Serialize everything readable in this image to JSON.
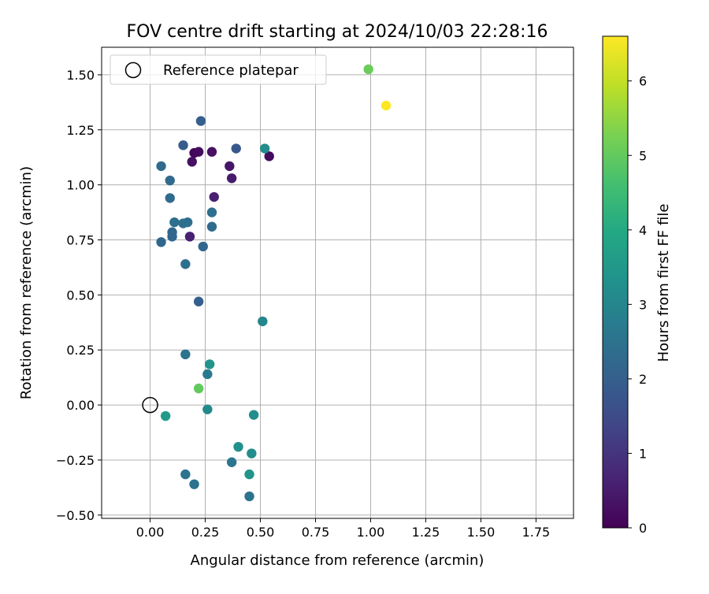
{
  "chart_data": {
    "type": "scatter",
    "title": "FOV centre drift starting at 2024/10/03 22:28:16",
    "xlabel": "Angular distance from reference (arcmin)",
    "ylabel": "Rotation from reference (arcmin)",
    "xlim": [
      -0.22,
      1.92
    ],
    "ylim": [
      -0.515,
      1.625
    ],
    "xticks": [
      0.0,
      0.25,
      0.5,
      0.75,
      1.0,
      1.25,
      1.5,
      1.75
    ],
    "xtick_labels": [
      "0.00",
      "0.25",
      "0.50",
      "0.75",
      "1.00",
      "1.25",
      "1.50",
      "1.75"
    ],
    "yticks": [
      -0.5,
      -0.25,
      0.0,
      0.25,
      0.5,
      0.75,
      1.0,
      1.25,
      1.5
    ],
    "ytick_labels": [
      "−0.50",
      "−0.25",
      "0.00",
      "0.25",
      "0.50",
      "0.75",
      "1.00",
      "1.25",
      "1.50"
    ],
    "grid": true,
    "legend": {
      "position": "top-left",
      "entries": [
        "Reference platepar"
      ]
    },
    "reference_point": {
      "x": 0.0,
      "y": 0.0
    },
    "colorbar": {
      "label": "Hours from first FF file",
      "min": 0,
      "max": 6.6,
      "ticks": [
        0,
        1,
        2,
        3,
        4,
        5,
        6
      ],
      "tick_labels": [
        "0",
        "1",
        "2",
        "3",
        "4",
        "5",
        "6"
      ],
      "colormap": "viridis"
    },
    "points": [
      {
        "x": 0.2,
        "y": 1.145,
        "hours": 0.1
      },
      {
        "x": 0.22,
        "y": 1.15,
        "hours": 0.2
      },
      {
        "x": 0.28,
        "y": 1.15,
        "hours": 0.3
      },
      {
        "x": 0.19,
        "y": 1.105,
        "hours": 0.3
      },
      {
        "x": 0.36,
        "y": 1.085,
        "hours": 0.4
      },
      {
        "x": 0.54,
        "y": 1.13,
        "hours": 0.2
      },
      {
        "x": 0.37,
        "y": 1.03,
        "hours": 0.5
      },
      {
        "x": 0.29,
        "y": 0.945,
        "hours": 0.6
      },
      {
        "x": 0.18,
        "y": 0.765,
        "hours": 0.6
      },
      {
        "x": 0.23,
        "y": 1.29,
        "hours": 2.0
      },
      {
        "x": 0.15,
        "y": 1.18,
        "hours": 1.9
      },
      {
        "x": 0.39,
        "y": 1.165,
        "hours": 1.8
      },
      {
        "x": 0.05,
        "y": 1.085,
        "hours": 2.3
      },
      {
        "x": 0.09,
        "y": 1.02,
        "hours": 2.3
      },
      {
        "x": 0.09,
        "y": 0.94,
        "hours": 2.3
      },
      {
        "x": 0.28,
        "y": 0.875,
        "hours": 2.4
      },
      {
        "x": 0.11,
        "y": 0.83,
        "hours": 2.4
      },
      {
        "x": 0.15,
        "y": 0.825,
        "hours": 2.4
      },
      {
        "x": 0.17,
        "y": 0.83,
        "hours": 2.4
      },
      {
        "x": 0.28,
        "y": 0.81,
        "hours": 2.3
      },
      {
        "x": 0.1,
        "y": 0.785,
        "hours": 2.2
      },
      {
        "x": 0.1,
        "y": 0.765,
        "hours": 2.2
      },
      {
        "x": 0.05,
        "y": 0.74,
        "hours": 2.2
      },
      {
        "x": 0.24,
        "y": 0.72,
        "hours": 2.2
      },
      {
        "x": 0.16,
        "y": 0.64,
        "hours": 2.4
      },
      {
        "x": 0.22,
        "y": 0.47,
        "hours": 2.0
      },
      {
        "x": 0.52,
        "y": 1.165,
        "hours": 3.2
      },
      {
        "x": 0.51,
        "y": 0.38,
        "hours": 3.0
      },
      {
        "x": 0.16,
        "y": 0.23,
        "hours": 2.5
      },
      {
        "x": 0.27,
        "y": 0.185,
        "hours": 3.4
      },
      {
        "x": 0.26,
        "y": 0.14,
        "hours": 2.7
      },
      {
        "x": 0.26,
        "y": -0.02,
        "hours": 3.1
      },
      {
        "x": 0.07,
        "y": -0.05,
        "hours": 3.6
      },
      {
        "x": 0.47,
        "y": -0.045,
        "hours": 3.2
      },
      {
        "x": 0.4,
        "y": -0.19,
        "hours": 3.3
      },
      {
        "x": 0.46,
        "y": -0.22,
        "hours": 3.2
      },
      {
        "x": 0.37,
        "y": -0.26,
        "hours": 2.6
      },
      {
        "x": 0.45,
        "y": -0.315,
        "hours": 3.4
      },
      {
        "x": 0.16,
        "y": -0.315,
        "hours": 2.5
      },
      {
        "x": 0.2,
        "y": -0.36,
        "hours": 2.5
      },
      {
        "x": 0.45,
        "y": -0.415,
        "hours": 2.5
      },
      {
        "x": 0.22,
        "y": 0.075,
        "hours": 5.0
      },
      {
        "x": 0.99,
        "y": 1.525,
        "hours": 5.1
      },
      {
        "x": 1.07,
        "y": 1.36,
        "hours": 6.6
      }
    ]
  }
}
